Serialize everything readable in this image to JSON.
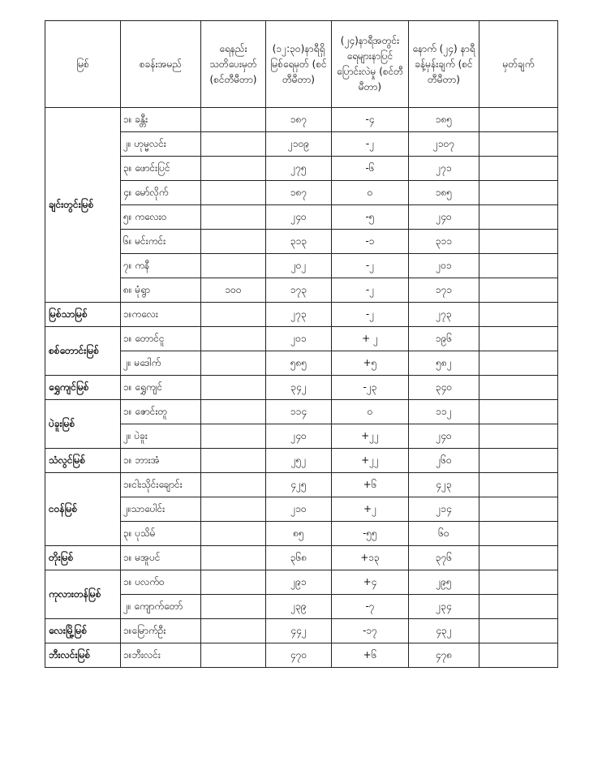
{
  "headers": [
    "မြစ်",
    "စခန်းအမည်",
    "ရေနည်း သတိပေးမှတ် (စင်တီမီတာ)",
    "(၁၂:၃၀)နာရီရှိ မြစ်ရေမှတ် (စင်တီမီတာ)",
    "(၂၄)နာရီအတွင်း ရေများနာပြင် ပြောင်းလဲမှု (စင်တီမီတာ)",
    "နောက် (၂၄) နာရီ ခန့်မှန်းချက် (စင်တီမီတာ)",
    "မှတ်ချက်"
  ],
  "rivers": [
    {
      "name": "ချင်းတွင်းမြစ်",
      "stations": [
        {
          "name": "၁။ ခန္တီး",
          "warning": "",
          "level": "၁၈၇",
          "change": "-၄",
          "forecast": "၁၈၅",
          "remark": ""
        },
        {
          "name": "၂။ ဟုမ္မလင်း",
          "warning": "",
          "level": "၂၁၀၉",
          "change": "-၂",
          "forecast": "၂၁၀၇",
          "remark": ""
        },
        {
          "name": "၃။ ဖောင်းပြင်",
          "warning": "",
          "level": "၂၇၅",
          "change": "-၆",
          "forecast": "၂၇၁",
          "remark": ""
        },
        {
          "name": "၄။ မော်လိုက်",
          "warning": "",
          "level": "၁၈၇",
          "change": "၀",
          "forecast": "၁၈၅",
          "remark": ""
        },
        {
          "name": "၅။ ကလေးဝ",
          "warning": "",
          "level": "၂၄၀",
          "change": "-၅",
          "forecast": "၂၄၀",
          "remark": ""
        },
        {
          "name": "၆။ မင်းကင်း",
          "warning": "",
          "level": "၃၁၃",
          "change": "-၁",
          "forecast": "၃၁၁",
          "remark": ""
        },
        {
          "name": "၇။ ကနီ",
          "warning": "",
          "level": "၂၀၂",
          "change": "-၂",
          "forecast": "၂၀၁",
          "remark": ""
        },
        {
          "name": "၈။ မုံရွာ",
          "warning": "၁၀၀",
          "level": "၁၇၃",
          "change": "-၂",
          "forecast": "၁၇၁",
          "remark": ""
        }
      ]
    },
    {
      "name": "မြစ်သာမြစ်",
      "stations": [
        {
          "name": "၁။ကလေး",
          "warning": "",
          "level": "၂၇၃",
          "change": "-၂",
          "forecast": "၂၇၃",
          "remark": ""
        }
      ]
    },
    {
      "name": "စစ်တောင်းမြစ်",
      "stations": [
        {
          "name": "၁။ တောင်ငူ",
          "warning": "",
          "level": "၂၀၁",
          "change": "+ ၂",
          "forecast": "၁၉၆",
          "remark": ""
        },
        {
          "name": "၂။ မဒေါက်",
          "warning": "",
          "level": "၅၈၅",
          "change": "+၅",
          "forecast": "၅၈၂",
          "remark": ""
        }
      ]
    },
    {
      "name": "ရွှေကျင်မြစ်",
      "stations": [
        {
          "name": "၁။ ရွှေကျင်",
          "warning": "",
          "level": "၃၄၂",
          "change": "-၂၃",
          "forecast": "၃၄၀",
          "remark": ""
        }
      ]
    },
    {
      "name": "ပဲခူးမြစ်",
      "stations": [
        {
          "name": "၁။ ဇောင်းတူ",
          "warning": "",
          "level": "၁၁၄",
          "change": "၀",
          "forecast": "၁၁၂",
          "remark": ""
        },
        {
          "name": "၂။ ပဲခူး",
          "warning": "",
          "level": "၂၄၀",
          "change": "+၂၂",
          "forecast": "၂၄၀",
          "remark": ""
        }
      ]
    },
    {
      "name": "သံလွင်မြစ်",
      "stations": [
        {
          "name": "၁။ ဘားအံ",
          "warning": "",
          "level": "၂၅၂",
          "change": "+၂၂",
          "forecast": "၂၆၀",
          "remark": ""
        }
      ]
    },
    {
      "name": "ငဝန်မြစ်",
      "stations": [
        {
          "name": "၁။ငါးသိုင်းချောင်း",
          "warning": "",
          "level": "၄၂၅",
          "change": "+၆",
          "forecast": "၄၂၃",
          "remark": ""
        },
        {
          "name": "၂။သာပေါင်း",
          "warning": "",
          "level": "၂၁၀",
          "change": "+၂",
          "forecast": "၂၁၄",
          "remark": ""
        },
        {
          "name": "၃။ ပုသိမ်",
          "warning": "",
          "level": "၈၅",
          "change": "-၅၅",
          "forecast": "၆၀",
          "remark": ""
        }
      ]
    },
    {
      "name": "တိုးမြစ်",
      "stations": [
        {
          "name": "၁။ မအူပင်",
          "warning": "",
          "level": "၃၆၈",
          "change": "+၁၃",
          "forecast": "၃၇၆",
          "remark": ""
        }
      ]
    },
    {
      "name": "ကုလားတန်မြစ်",
      "stations": [
        {
          "name": "၁။ ပလက်ဝ",
          "warning": "",
          "level": "၂၉၁",
          "change": "+၄",
          "forecast": "၂၉၅",
          "remark": ""
        },
        {
          "name": "၂။ ကျောက်တော်",
          "warning": "",
          "level": "၂၃၉",
          "change": "-၇",
          "forecast": "၂၃၄",
          "remark": ""
        }
      ]
    },
    {
      "name": "လေးမြို့မြစ်",
      "stations": [
        {
          "name": "၁။မြောက်ဦး",
          "warning": "",
          "level": "၄၄၂",
          "change": "-၁၇",
          "forecast": "၄၃၂",
          "remark": ""
        }
      ]
    },
    {
      "name": "ဘီးလင်းမြစ်",
      "stations": [
        {
          "name": "၁။ဘီးလင်း",
          "warning": "",
          "level": "၄၇၀",
          "change": "+၆",
          "forecast": "၄၇၈",
          "remark": ""
        }
      ]
    }
  ]
}
